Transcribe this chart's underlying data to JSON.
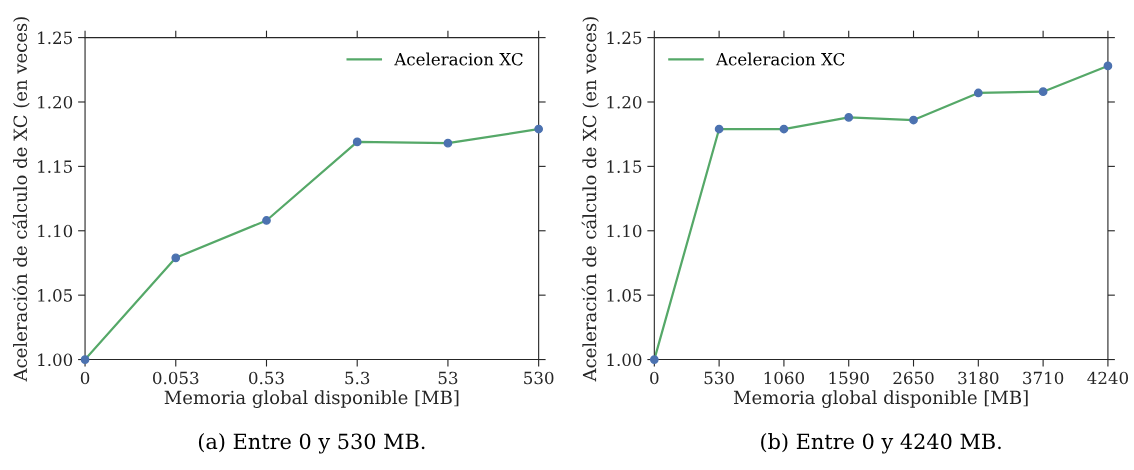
{
  "chart_data": [
    {
      "type": "line",
      "categories": [
        "0",
        "0.053",
        "0.53",
        "5.3",
        "53",
        "530"
      ],
      "xlabel": "Memoria global disponible [MB]",
      "ylabel": "Aceleración de cálculo de XC (en veces)",
      "ylim": [
        1.0,
        1.25
      ],
      "yticks": [
        {
          "value": 1.0,
          "label": "1.00"
        },
        {
          "value": 1.05,
          "label": "1.05"
        },
        {
          "value": 1.1,
          "label": "1.10"
        },
        {
          "value": 1.15,
          "label": "1.15"
        },
        {
          "value": 1.2,
          "label": "1.20"
        },
        {
          "value": 1.25,
          "label": "1.25"
        }
      ],
      "grid": false,
      "legend": "top right",
      "annotations": [
        "(a) Entre 0 y 530 MB."
      ],
      "series": [
        {
          "type": "scatter",
          "color": "#4c72b0",
          "marker": "circle",
          "values": [
            1.0,
            1.079,
            1.108,
            1.169,
            1.168,
            1.179
          ]
        },
        {
          "name": "Aceleracion XC",
          "color": "#55a868",
          "marker": "none",
          "values": [
            1.0,
            1.079,
            1.108,
            1.169,
            1.168,
            1.179
          ]
        }
      ]
    },
    {
      "type": "line",
      "categories": [
        "0",
        "530",
        "1060",
        "1590",
        "2650",
        "3180",
        "3710",
        "4240"
      ],
      "xlabel": "Memoria global disponible [MB]",
      "ylabel": "Aceleración de cálculo de XC (en veces)",
      "ylim": [
        1.0,
        1.25
      ],
      "yticks": [
        {
          "value": 1.0,
          "label": "1.00"
        },
        {
          "value": 1.05,
          "label": "1.05"
        },
        {
          "value": 1.1,
          "label": "1.10"
        },
        {
          "value": 1.15,
          "label": "1.15"
        },
        {
          "value": 1.2,
          "label": "1.20"
        },
        {
          "value": 1.25,
          "label": "1.25"
        }
      ],
      "grid": false,
      "legend": "top left",
      "annotations": [
        "(b) Entre 0 y 4240 MB."
      ],
      "series": [
        {
          "type": "scatter",
          "color": "#4c72b0",
          "marker": "circle",
          "values": [
            1.0,
            1.179,
            1.179,
            1.188,
            1.186,
            1.207,
            1.208,
            1.228
          ]
        },
        {
          "name": "Aceleracion XC",
          "color": "#55a868",
          "marker": "none",
          "values": [
            1.0,
            1.179,
            1.179,
            1.188,
            1.186,
            1.207,
            1.208,
            1.228
          ]
        }
      ]
    }
  ]
}
